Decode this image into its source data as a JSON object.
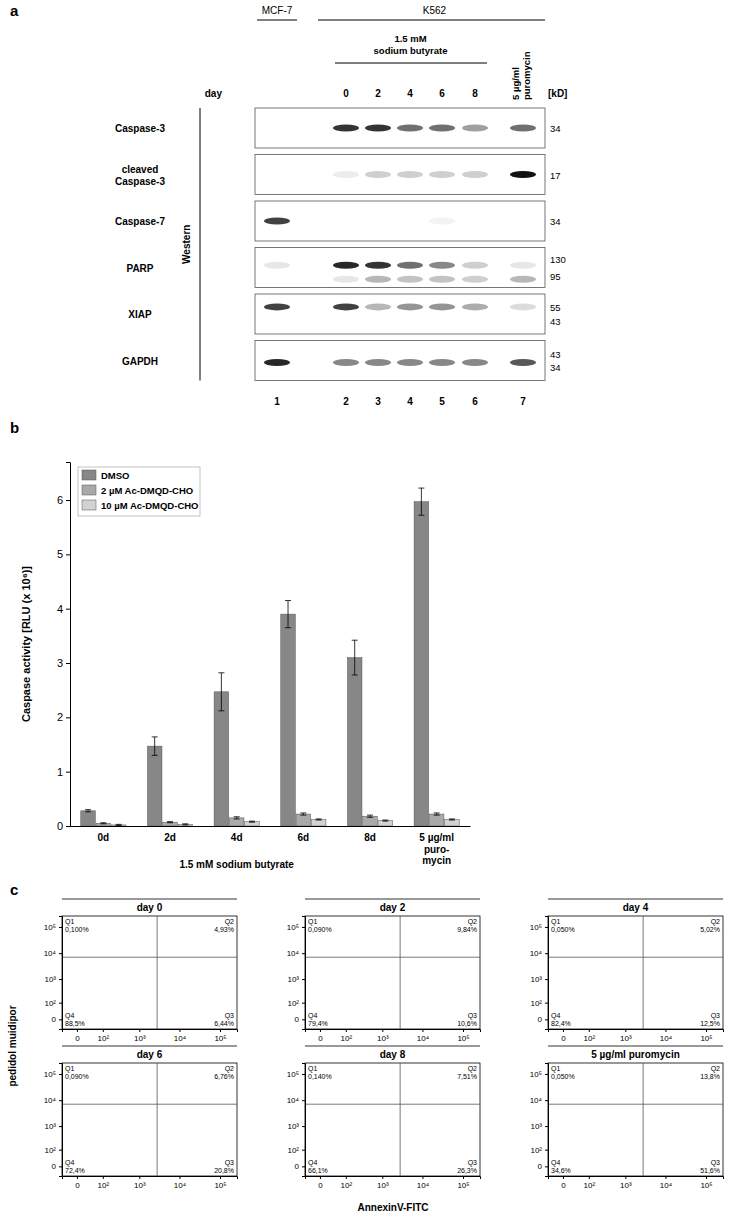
{
  "western_blot": {
    "panel_label": "a",
    "side_label": "Western",
    "kd_label": "[kD]",
    "day_label": "day",
    "lane_groups": [
      {
        "label": "MCF-7"
      },
      {
        "label": "K562"
      }
    ],
    "treatment": "1.5 mM\nsodium butyrate",
    "days": [
      0,
      2,
      4,
      6,
      8
    ],
    "control": "5 µg/ml\npuromycin",
    "lane_numbers": [
      1,
      2,
      3,
      4,
      5,
      6,
      7
    ],
    "rows": [
      {
        "label": "Caspase-3",
        "markers": [
          34
        ],
        "bands": [
          {
            "kd": 34,
            "intensity": [
              0,
              0.85,
              0.85,
              0.6,
              0.6,
              0.4,
              0.6
            ]
          }
        ]
      },
      {
        "label": "cleaved\nCaspase-3",
        "markers": [
          17
        ],
        "bands": [
          {
            "kd": 17,
            "intensity": [
              0,
              0.08,
              0.2,
              0.2,
              0.2,
              0.2,
              1
            ]
          }
        ]
      },
      {
        "label": "Caspase-7",
        "markers": [
          34
        ],
        "bands": [
          {
            "kd": 34,
            "intensity": [
              0.8,
              0,
              0,
              0,
              0.05,
              0,
              0
            ]
          }
        ]
      },
      {
        "label": "PARP",
        "markers": [
          130,
          95
        ],
        "bands": [
          {
            "kd": 116,
            "intensity": [
              0.1,
              0.9,
              0.85,
              0.6,
              0.5,
              0.2,
              0.1
            ]
          },
          {
            "kd": 89,
            "intensity": [
              0,
              0.1,
              0.3,
              0.25,
              0.25,
              0.2,
              0.3
            ]
          }
        ]
      },
      {
        "label": "XIAP",
        "markers": [
          55,
          43
        ],
        "bands": [
          {
            "kd": 55,
            "intensity": [
              0.8,
              0.8,
              0.3,
              0.45,
              0.45,
              0.35,
              0.15
            ]
          }
        ]
      },
      {
        "label": "GAPDH",
        "markers": [
          43,
          34
        ],
        "bands": [
          {
            "kd": 37,
            "intensity": [
              0.9,
              0.5,
              0.5,
              0.5,
              0.5,
              0.5,
              0.7
            ]
          }
        ]
      }
    ]
  },
  "chart_data": {
    "type": "bar",
    "panel_label": "b",
    "ylabel": "Caspase activity [RLU (x 10⁶)]",
    "categories": [
      "0d",
      "2d",
      "4d",
      "6d",
      "8d",
      "5 µg/ml\npuro-\nmycin"
    ],
    "series": [
      {
        "name": "DMSO",
        "color": "#878787",
        "values": [
          0.28,
          1.47,
          2.47,
          3.9,
          3.1,
          5.97
        ],
        "errors": [
          0.02,
          0.17,
          0.35,
          0.25,
          0.32,
          0.25
        ]
      },
      {
        "name": "2 µM Ac-DMQD-CHO",
        "color": "#a9a9a9",
        "values": [
          0.05,
          0.07,
          0.15,
          0.22,
          0.18,
          0.22
        ],
        "errors": [
          0.01,
          0.01,
          0.02,
          0.02,
          0.02,
          0.02
        ]
      },
      {
        "name": "10 µM Ac-DMQD-CHO",
        "color": "#d2d2d2",
        "values": [
          0.02,
          0.03,
          0.08,
          0.12,
          0.1,
          0.12
        ],
        "errors": [
          0.01,
          0.01,
          0.01,
          0.01,
          0.01,
          0.01
        ]
      }
    ],
    "ylim": [
      0,
      6.7
    ],
    "yticks": [
      0,
      1,
      2,
      3,
      4,
      5,
      6
    ],
    "legend": "top-left",
    "annotations": [
      {
        "text": "1.5 mM sodium butyrate",
        "from": "0d",
        "to": "8d"
      }
    ]
  },
  "flow_cytometry": {
    "panel_label": "c",
    "xlabel": "AnnexinV-FITC",
    "ylabel": "pedidol muidipor",
    "log": true,
    "xlim": [
      -40,
      262144
    ],
    "ylim": [
      -40,
      262144
    ],
    "xticks": [
      0,
      {
        "value": 100,
        "label": "10²"
      },
      {
        "value": 1000,
        "label": "10³"
      },
      {
        "value": 10000,
        "label": "10⁴"
      },
      {
        "value": 100000,
        "label": "10⁵"
      }
    ],
    "yticks": [
      0,
      {
        "value": 100,
        "label": "10²"
      },
      {
        "value": 1000,
        "label": "10³"
      },
      {
        "value": 10000,
        "label": "10⁴"
      },
      {
        "value": 100000,
        "label": "10⁵"
      }
    ],
    "gates": {
      "x": 2800,
      "y": 7000
    },
    "plots": [
      {
        "title": "day 0",
        "quadrants": [
          {
            "name": "Q1",
            "value": 0.1,
            "label": "0,100%"
          },
          {
            "name": "Q2",
            "value": 4.93,
            "label": "4,93%"
          },
          {
            "name": "Q3",
            "value": 6.44,
            "label": "6,44%"
          },
          {
            "name": "Q4",
            "value": 88.5,
            "label": "88,5%"
          }
        ]
      },
      {
        "title": "day 2",
        "quadrants": [
          {
            "name": "Q1",
            "value": 0.09,
            "label": "0,090%"
          },
          {
            "name": "Q2",
            "value": 9.84,
            "label": "9,84%"
          },
          {
            "name": "Q3",
            "value": 10.6,
            "label": "10,6%"
          },
          {
            "name": "Q4",
            "value": 79.4,
            "label": "79,4%"
          }
        ]
      },
      {
        "title": "day 4",
        "quadrants": [
          {
            "name": "Q1",
            "value": 0.05,
            "label": "0,050%"
          },
          {
            "name": "Q2",
            "value": 5.02,
            "label": "5,02%"
          },
          {
            "name": "Q3",
            "value": 12.5,
            "label": "12,5%"
          },
          {
            "name": "Q4",
            "value": 82.4,
            "label": "82,4%"
          }
        ]
      },
      {
        "title": "day 6",
        "quadrants": [
          {
            "name": "Q1",
            "value": 0.09,
            "label": "0,090%"
          },
          {
            "name": "Q2",
            "value": 6.76,
            "label": "6,76%"
          },
          {
            "name": "Q3",
            "value": 20.8,
            "label": "20,8%"
          },
          {
            "name": "Q4",
            "value": 72.4,
            "label": "72,4%"
          }
        ]
      },
      {
        "title": "day 8",
        "quadrants": [
          {
            "name": "Q1",
            "value": 0.14,
            "label": "0,140%"
          },
          {
            "name": "Q2",
            "value": 7.51,
            "label": "7,51%"
          },
          {
            "name": "Q3",
            "value": 26.3,
            "label": "26,3%"
          },
          {
            "name": "Q4",
            "value": 66.1,
            "label": "66,1%"
          }
        ]
      },
      {
        "title": "5 µg/ml puromycin",
        "quadrants": [
          {
            "name": "Q1",
            "value": 0.05,
            "label": "0,050%"
          },
          {
            "name": "Q2",
            "value": 13.8,
            "label": "13,8%"
          },
          {
            "name": "Q3",
            "value": 51.6,
            "label": "51,6%"
          },
          {
            "name": "Q4",
            "value": 34.6,
            "label": "34,6%"
          }
        ]
      }
    ]
  }
}
